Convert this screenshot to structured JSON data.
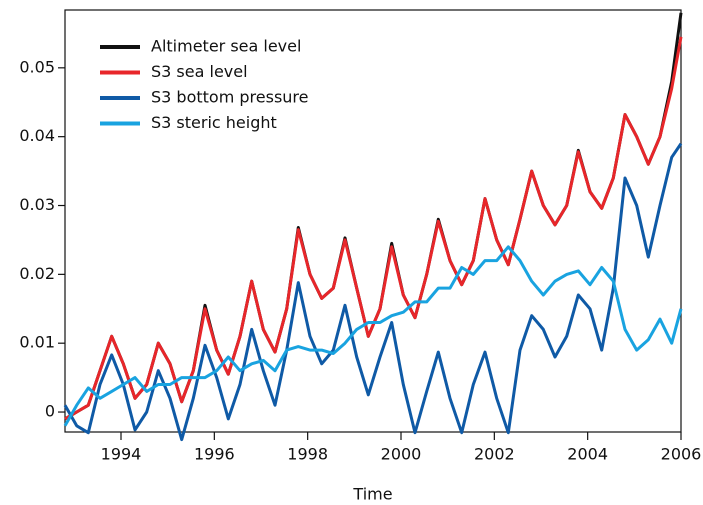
{
  "chart_data": {
    "type": "line",
    "xlabel": "Time",
    "x": [
      1992.8,
      1993.05,
      1993.3,
      1993.55,
      1993.8,
      1994.05,
      1994.3,
      1994.55,
      1994.8,
      1995.05,
      1995.3,
      1995.55,
      1995.8,
      1996.05,
      1996.3,
      1996.55,
      1996.8,
      1997.05,
      1997.3,
      1997.55,
      1997.8,
      1998.05,
      1998.3,
      1998.55,
      1998.8,
      1999.05,
      1999.3,
      1999.55,
      1999.8,
      2000.05,
      2000.3,
      2000.55,
      2000.8,
      2001.05,
      2001.3,
      2001.55,
      2001.8,
      2002.05,
      2002.3,
      2002.55,
      2002.8,
      2003.05,
      2003.3,
      2003.55,
      2003.8,
      2004.05,
      2004.3,
      2004.55,
      2004.8,
      2005.05,
      2005.3,
      2005.55,
      2005.8,
      2006
    ],
    "series": [
      {
        "name": "Altimeter sea level",
        "color": "#111111",
        "values": [
          -0.001,
          0.0,
          0.001,
          0.006,
          0.011,
          0.007,
          0.002,
          0.004,
          0.01,
          0.007,
          0.0015,
          0.006,
          0.0155,
          0.009,
          0.0055,
          0.011,
          0.019,
          0.012,
          0.0087,
          0.015,
          0.0268,
          0.02,
          0.0165,
          0.018,
          0.0253,
          0.018,
          0.011,
          0.015,
          0.0245,
          0.017,
          0.0137,
          0.02,
          0.028,
          0.022,
          0.0185,
          0.022,
          0.031,
          0.025,
          0.0214,
          0.028,
          0.035,
          0.03,
          0.0272,
          0.03,
          0.038,
          0.032,
          0.0296,
          0.034,
          0.0432,
          0.04,
          0.036,
          0.04,
          0.048,
          0.058
        ]
      },
      {
        "name": "S3 sea level",
        "color": "#e8262a",
        "values": [
          -0.001,
          0.0,
          0.001,
          0.006,
          0.011,
          0.007,
          0.002,
          0.004,
          0.01,
          0.007,
          0.0015,
          0.006,
          0.015,
          0.009,
          0.0055,
          0.011,
          0.019,
          0.012,
          0.0087,
          0.015,
          0.0265,
          0.02,
          0.0165,
          0.018,
          0.025,
          0.018,
          0.011,
          0.015,
          0.024,
          0.017,
          0.0137,
          0.02,
          0.0277,
          0.022,
          0.0185,
          0.022,
          0.031,
          0.025,
          0.0214,
          0.028,
          0.035,
          0.03,
          0.0272,
          0.03,
          0.0378,
          0.032,
          0.0296,
          0.034,
          0.0432,
          0.04,
          0.036,
          0.04,
          0.047,
          0.0545
        ]
      },
      {
        "name": "S3 bottom pressure",
        "color": "#0f5aa6",
        "values": [
          0.001,
          -0.002,
          -0.003,
          0.004,
          0.0083,
          0.004,
          -0.0026,
          0.0,
          0.006,
          0.002,
          -0.004,
          0.002,
          0.0097,
          0.005,
          -0.001,
          0.004,
          0.012,
          0.006,
          0.001,
          0.009,
          0.0188,
          0.011,
          0.007,
          0.009,
          0.0155,
          0.008,
          0.0025,
          0.008,
          0.013,
          0.004,
          -0.003,
          0.003,
          0.0087,
          0.002,
          -0.003,
          0.004,
          0.0087,
          0.002,
          -0.003,
          0.009,
          0.014,
          0.012,
          0.008,
          0.011,
          0.017,
          0.015,
          0.009,
          0.018,
          0.034,
          0.03,
          0.0225,
          0.03,
          0.037,
          0.039
        ]
      },
      {
        "name": "S3 steric height",
        "color": "#19a3e0",
        "values": [
          -0.002,
          0.001,
          0.0035,
          0.002,
          0.003,
          0.004,
          0.005,
          0.003,
          0.004,
          0.004,
          0.005,
          0.005,
          0.005,
          0.006,
          0.008,
          0.006,
          0.007,
          0.0075,
          0.006,
          0.009,
          0.0095,
          0.009,
          0.009,
          0.0085,
          0.01,
          0.012,
          0.013,
          0.013,
          0.014,
          0.0145,
          0.016,
          0.016,
          0.018,
          0.018,
          0.021,
          0.02,
          0.022,
          0.022,
          0.024,
          0.022,
          0.019,
          0.017,
          0.019,
          0.02,
          0.0205,
          0.0185,
          0.021,
          0.019,
          0.012,
          0.009,
          0.0105,
          0.0135,
          0.01,
          0.015
        ]
      }
    ],
    "xlim": [
      1992.8,
      2006
    ],
    "xticks": [
      1994,
      1996,
      1998,
      2000,
      2002,
      2004,
      2006
    ],
    "ylim": [
      -0.0029,
      0.0584
    ],
    "yticks": [
      0,
      0.01,
      0.02,
      0.03,
      0.04,
      0.05
    ],
    "legend": "upper left"
  }
}
